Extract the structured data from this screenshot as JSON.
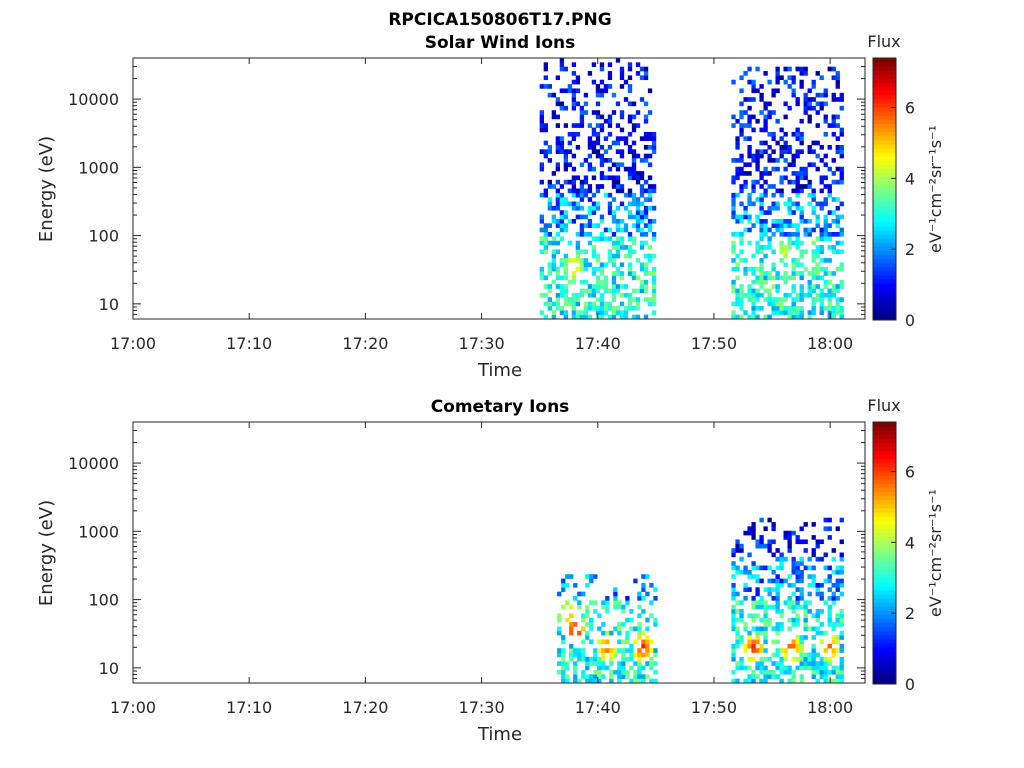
{
  "figure_title": "RPCICA150806T17.PNG",
  "chart_data": [
    {
      "type": "heatmap",
      "title": "Solar Wind Ions",
      "xlabel": "Time",
      "ylabel": "Energy (eV)",
      "x_ticks": [
        "17:00",
        "17:10",
        "17:20",
        "17:30",
        "17:40",
        "17:50",
        "18:00"
      ],
      "y_ticks": [
        "10",
        "100",
        "1000",
        "10000"
      ],
      "y_scale": "log",
      "xlim_minutes": [
        0,
        63
      ],
      "ylim": [
        6,
        40000
      ],
      "colorbar": {
        "label": "Flux",
        "unit": "eV⁻¹cm⁻²sr⁻¹s⁻¹",
        "range": [
          0,
          7.4
        ],
        "ticks": [
          "0",
          "2",
          "4",
          "6"
        ],
        "colormap": "jet"
      },
      "regions": [
        {
          "t_start": 35.0,
          "t_end": 45.0,
          "e_min": 6,
          "e_max": 40000
        },
        {
          "t_start": 51.5,
          "t_end": 61.0,
          "e_min": 6,
          "e_max": 30000
        }
      ],
      "hotspots": [
        {
          "t": 37.8,
          "e": 35,
          "flux": 5.2
        },
        {
          "t": 37.6,
          "e": 25,
          "flux": 4.2
        },
        {
          "t": 55.9,
          "e": 60,
          "flux": 4.5
        },
        {
          "t": 58.0,
          "e": 35,
          "flux": 4.2
        }
      ]
    },
    {
      "type": "heatmap",
      "title": "Cometary Ions",
      "xlabel": "Time",
      "ylabel": "Energy (eV)",
      "x_ticks": [
        "17:00",
        "17:10",
        "17:20",
        "17:30",
        "17:40",
        "17:50",
        "18:00"
      ],
      "y_ticks": [
        "10",
        "100",
        "1000",
        "10000"
      ],
      "y_scale": "log",
      "xlim_minutes": [
        0,
        63
      ],
      "ylim": [
        6,
        40000
      ],
      "colorbar": {
        "label": "Flux",
        "unit": "eV⁻¹cm⁻²sr⁻¹s⁻¹",
        "range": [
          0,
          7.4
        ],
        "ticks": [
          "0",
          "2",
          "4",
          "6"
        ],
        "colormap": "jet"
      },
      "regions": [
        {
          "t_start": 36.5,
          "t_end": 45.0,
          "e_min": 6,
          "e_max": 250
        },
        {
          "t_start": 51.5,
          "t_end": 61.0,
          "e_min": 6,
          "e_max": 1500
        }
      ],
      "hotspots": [
        {
          "t": 37.9,
          "e": 35,
          "flux": 6.8
        },
        {
          "t": 37.3,
          "e": 60,
          "flux": 5.5
        },
        {
          "t": 40.6,
          "e": 20,
          "flux": 6.0
        },
        {
          "t": 43.7,
          "e": 20,
          "flux": 6.5
        },
        {
          "t": 53.3,
          "e": 20,
          "flux": 6.5
        },
        {
          "t": 56.5,
          "e": 20,
          "flux": 6.2
        },
        {
          "t": 59.8,
          "e": 20,
          "flux": 6.0
        }
      ]
    }
  ]
}
